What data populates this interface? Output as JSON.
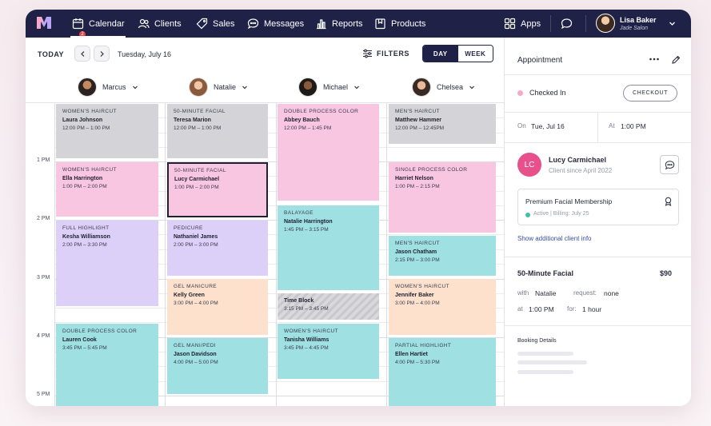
{
  "nav": {
    "items": [
      {
        "label": "Calendar",
        "icon": "calendar-icon",
        "badge": "2"
      },
      {
        "label": "Clients",
        "icon": "users-icon"
      },
      {
        "label": "Sales",
        "icon": "tag-icon"
      },
      {
        "label": "Messages",
        "icon": "chat-icon"
      },
      {
        "label": "Reports",
        "icon": "bar-chart-icon"
      },
      {
        "label": "Products",
        "icon": "box-icon"
      }
    ],
    "apps_label": "Apps",
    "user": {
      "name": "Lisa Baker",
      "salon": "Jade Salon"
    }
  },
  "toolbar": {
    "today_label": "TODAY",
    "date_label": "Tuesday, July 16",
    "filters_label": "FILTERS",
    "view_day": "DAY",
    "view_week": "WEEK"
  },
  "staff": [
    "Marcus",
    "Natalie",
    "Michael",
    "Chelsea"
  ],
  "hours": [
    "1 PM",
    "2 PM",
    "3 PM",
    "4 PM",
    "5 PM"
  ],
  "appointments": {
    "marcus": [
      {
        "service": "WOMEN'S HAIRCUT",
        "client": "Laura Johnson",
        "time": "12:00 PM – 1:00 PM",
        "color": "#d4d4d8"
      },
      {
        "service": "WOMEN'S HAIRCUT",
        "client": "Ella Harrington",
        "time": "1:00 PM – 2:00 PM",
        "color": "#f9c6e2"
      },
      {
        "service": "FULL HIGHLIGHT",
        "client": "Kesha Williamson",
        "time": "2:00 PM – 3:30 PM",
        "color": "#dcd0f8"
      },
      {
        "service": "DOUBLE PROCESS COLOR",
        "client": "Lauren Cook",
        "time": "3:45 PM – 5:45 PM",
        "color": "#9fe1e3"
      }
    ],
    "natalie": [
      {
        "service": "50-MINUTE FACIAL",
        "client": "Teresa Marion",
        "time": "12:00 PM – 1:00 PM",
        "color": "#d4d4d8"
      },
      {
        "service": "50-MINUTE FACIAL",
        "client": "Lucy Carmichael",
        "time": "1:00 PM – 2:00 PM",
        "color": "#f9c6e2"
      },
      {
        "service": "PEDICURE",
        "client": "Nathaniel James",
        "time": "2:00 PM – 3:00 PM",
        "color": "#dcd0f8"
      },
      {
        "service": "GEL MANICURE",
        "client": "Kelly Green",
        "time": "3:00 PM – 4:00 PM",
        "color": "#fde1cd"
      },
      {
        "service": "GEL MANI/PEDI",
        "client": "Jason Davidson",
        "time": "4:00 PM – 5:00 PM",
        "color": "#9fe1e3"
      }
    ],
    "michael": [
      {
        "service": "DOUBLE PROCESS COLOR",
        "client": "Abbey Bauch",
        "time": "12:00 PM – 1:45 PM",
        "color": "#f9c6e2"
      },
      {
        "service": "BALAYAGE",
        "client": "Natalie Harrington",
        "time": "1:45 PM – 3:15 PM",
        "color": "#9fe1e3"
      },
      {
        "service": "",
        "client": "Time Block",
        "time": "3:15 PM – 3:45 PM",
        "color": "#d9d9dd"
      },
      {
        "service": "WOMEN'S HAIRCUT",
        "client": "Tanisha Williams",
        "time": "3:45 PM – 4:45 PM",
        "color": "#9fe1e3"
      }
    ],
    "chelsea": [
      {
        "service": "MEN'S HAIRCUT",
        "client": "Matthew Hammer",
        "time": "12:00 PM – 12:45PM",
        "color": "#d4d4d8"
      },
      {
        "service": "SINGLE PROCESS COLOR",
        "client": "Harriet Nelson",
        "time": "1:00 PM – 2:15 PM",
        "color": "#f9c6e2"
      },
      {
        "service": "MEN'S HAIRCUT",
        "client": "Jason Chatham",
        "time": "2:15 PM – 3:00 PM",
        "color": "#9fe1e3"
      },
      {
        "service": "WOMEN'S HAIRCUT",
        "client": "Jennifer Baker",
        "time": "3:00 PM – 4:00 PM",
        "color": "#fde1cd"
      },
      {
        "service": "PARTIAL HIGHLIGHT",
        "client": "Ellen Hartiet",
        "time": "4:00 PM – 5:30 PM",
        "color": "#9fe1e3"
      }
    ]
  },
  "panel": {
    "title": "Appointment",
    "status": "Checked In",
    "checkout_label": "CHECKOUT",
    "on_label": "On",
    "on_value": "Tue, Jul 16",
    "at_label": "At",
    "at_value": "1:00 PM",
    "client": {
      "initials": "LC",
      "name": "Lucy Carmichael",
      "since": "Client since April 2022"
    },
    "membership": {
      "title": "Premium Facial Membership",
      "status": "Active",
      "billing": "Billing: July 25"
    },
    "show_more": "Show additional client info",
    "service": {
      "name": "50-Minute Facial",
      "price": "$90",
      "with_label": "with",
      "with_value": "Natalie",
      "request_label": "request:",
      "request_value": "none",
      "at_label": "at",
      "at_value": "1:00 PM",
      "for_label": "for:",
      "for_value": "1 hour"
    },
    "booking_title": "Booking Details"
  }
}
